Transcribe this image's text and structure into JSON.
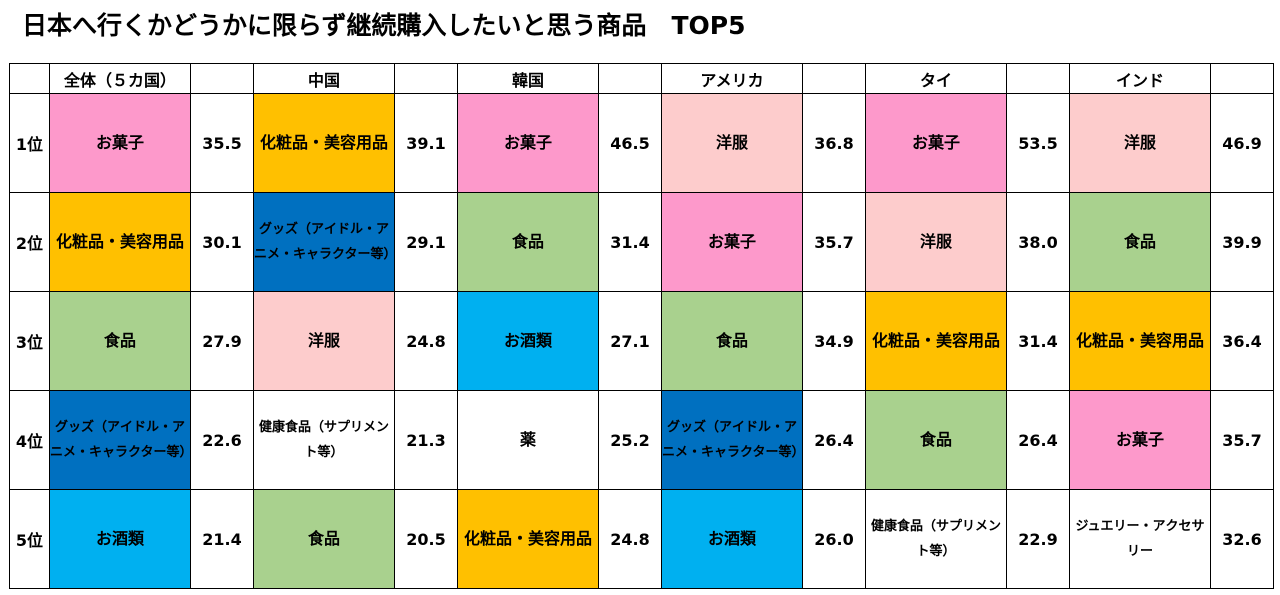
{
  "title": "日本へ行くかどうかに限らず継続購入したいと思う商品　TOP5",
  "chart_data": {
    "type": "table",
    "columns": [
      "全体（５カ国）",
      "中国",
      "韓国",
      "アメリカ",
      "タイ",
      "インド"
    ],
    "rows": [
      {
        "rank": "1位",
        "cells": [
          {
            "item": "お菓子",
            "value": "35.5",
            "color": "#fd99cb"
          },
          {
            "item": "化粧品・美容用品",
            "value": "39.1",
            "color": "#ffc000"
          },
          {
            "item": "お菓子",
            "value": "46.5",
            "color": "#fd99cb"
          },
          {
            "item": "洋服",
            "value": "36.8",
            "color": "#fdcccc"
          },
          {
            "item": "お菓子",
            "value": "53.5",
            "color": "#fd99cb"
          },
          {
            "item": "洋服",
            "value": "46.9",
            "color": "#fdcccc"
          }
        ]
      },
      {
        "rank": "2位",
        "cells": [
          {
            "item": "化粧品・美容用品",
            "value": "30.1",
            "color": "#ffc000"
          },
          {
            "item": "グッズ（アイドル・アニメ・キャラクター等）",
            "value": "29.1",
            "color": "#0070c0"
          },
          {
            "item": "食品",
            "value": "31.4",
            "color": "#a9d18e"
          },
          {
            "item": "お菓子",
            "value": "35.7",
            "color": "#fd99cb"
          },
          {
            "item": "洋服",
            "value": "38.0",
            "color": "#fdcccc"
          },
          {
            "item": "食品",
            "value": "39.9",
            "color": "#a9d18e"
          }
        ]
      },
      {
        "rank": "3位",
        "cells": [
          {
            "item": "食品",
            "value": "27.9",
            "color": "#a9d18e"
          },
          {
            "item": "洋服",
            "value": "24.8",
            "color": "#fdcccc"
          },
          {
            "item": "お酒類",
            "value": "27.1",
            "color": "#00b0f0"
          },
          {
            "item": "食品",
            "value": "34.9",
            "color": "#a9d18e"
          },
          {
            "item": "化粧品・美容用品",
            "value": "31.4",
            "color": "#ffc000"
          },
          {
            "item": "化粧品・美容用品",
            "value": "36.4",
            "color": "#ffc000"
          }
        ]
      },
      {
        "rank": "4位",
        "cells": [
          {
            "item": "グッズ（アイドル・アニメ・キャラクター等）",
            "value": "22.6",
            "color": "#0070c0"
          },
          {
            "item": "健康食品（サプリメント等）",
            "value": "21.3",
            "color": "#ffffff"
          },
          {
            "item": "薬",
            "value": "25.2",
            "color": "#ffffff"
          },
          {
            "item": "グッズ（アイドル・アニメ・キャラクター等）",
            "value": "26.4",
            "color": "#0070c0"
          },
          {
            "item": "食品",
            "value": "26.4",
            "color": "#a9d18e"
          },
          {
            "item": "お菓子",
            "value": "35.7",
            "color": "#fd99cb"
          }
        ]
      },
      {
        "rank": "5位",
        "cells": [
          {
            "item": "お酒類",
            "value": "21.4",
            "color": "#00b0f0"
          },
          {
            "item": "食品",
            "value": "20.5",
            "color": "#a9d18e"
          },
          {
            "item": "化粧品・美容用品",
            "value": "24.8",
            "color": "#ffc000"
          },
          {
            "item": "お酒類",
            "value": "26.0",
            "color": "#00b0f0"
          },
          {
            "item": "健康食品（サプリメント等）",
            "value": "22.9",
            "color": "#ffffff"
          },
          {
            "item": "ジュエリー・アクセサリー",
            "value": "32.6",
            "color": "#ffffff"
          }
        ]
      }
    ]
  }
}
